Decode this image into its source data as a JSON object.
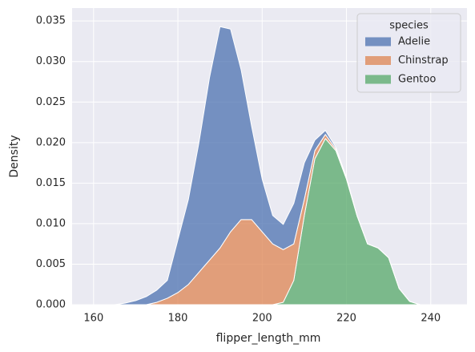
{
  "chart_data": {
    "type": "stacked_area",
    "x_label": "flipper_length_mm",
    "y_label": "Density",
    "x": [
      165,
      167.5,
      170,
      172.5,
      175,
      177.5,
      180,
      182.5,
      185,
      187.5,
      190,
      192.5,
      195,
      197.5,
      200,
      202.5,
      205,
      207.5,
      210,
      212.5,
      215,
      217.5,
      220,
      222.5,
      225,
      227.5,
      230,
      232.5,
      235,
      237.5,
      240
    ],
    "series": [
      {
        "name": "Adelie",
        "color": "#4c72b0",
        "values": [
          0,
          0.0002,
          0.0005,
          0.001,
          0.0015,
          0.0022,
          0.0065,
          0.0105,
          0.016,
          0.0225,
          0.0273,
          0.025,
          0.0185,
          0.0115,
          0.0065,
          0.0035,
          0.0031,
          0.005,
          0.0045,
          0.0013,
          0.0005,
          0.0002,
          0.0001,
          0,
          0,
          0,
          0,
          0,
          0,
          0,
          0
        ]
      },
      {
        "name": "Chinstrap",
        "color": "#dd8452",
        "values": [
          0,
          0,
          0,
          0,
          0.0003,
          0.0008,
          0.0015,
          0.0025,
          0.004,
          0.0055,
          0.007,
          0.009,
          0.0105,
          0.0105,
          0.009,
          0.0075,
          0.0065,
          0.0045,
          0.002,
          0.001,
          0.0005,
          0.0002,
          0.0001,
          0,
          0,
          0,
          0,
          0,
          0,
          0,
          0
        ]
      },
      {
        "name": "Gentoo",
        "color": "#55a868",
        "values": [
          0,
          0,
          0,
          0,
          0,
          0,
          0,
          0,
          0,
          0,
          0,
          0,
          0,
          0,
          0,
          0,
          0.0003,
          0.003,
          0.011,
          0.018,
          0.0205,
          0.019,
          0.0155,
          0.011,
          0.0075,
          0.007,
          0.0058,
          0.002,
          0.0004,
          0,
          0
        ]
      }
    ],
    "legend_title": "species",
    "legend": "upper right",
    "grid": true,
    "xlim": [
      154.9,
      248.6
    ],
    "xticks": [
      160,
      180,
      200,
      220,
      240
    ],
    "ylim": [
      0,
      0.0366
    ],
    "yticks": [
      {
        "value": 0,
        "label": "0.000"
      },
      {
        "value": 0.005,
        "label": "0.005"
      },
      {
        "value": 0.01,
        "label": "0.010"
      },
      {
        "value": 0.015,
        "label": "0.015"
      },
      {
        "value": 0.02,
        "label": "0.020"
      },
      {
        "value": 0.025,
        "label": "0.025"
      },
      {
        "value": 0.03,
        "label": "0.030"
      },
      {
        "value": 0.035,
        "label": "0.035"
      }
    ]
  }
}
